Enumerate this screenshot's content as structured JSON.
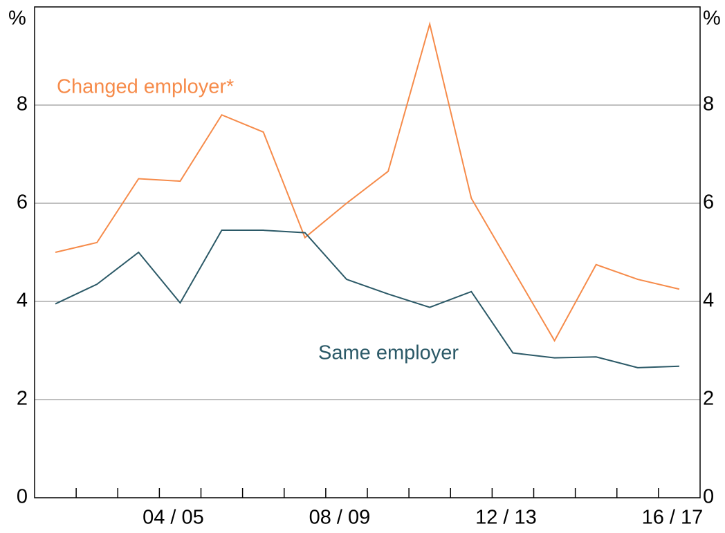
{
  "chart_data": {
    "type": "line",
    "categories": [
      null,
      null,
      null,
      "04 / 05",
      null,
      null,
      null,
      "08 / 09",
      null,
      null,
      null,
      "12 / 13",
      null,
      null,
      null,
      "16 / 17"
    ],
    "series": [
      {
        "name": "Changed employer*",
        "color": "#f68b4a",
        "values": [
          5.0,
          5.2,
          6.5,
          6.45,
          7.8,
          7.45,
          5.3,
          6.0,
          6.65,
          9.65,
          6.1,
          4.65,
          3.2,
          4.75,
          4.45,
          4.25
        ]
      },
      {
        "name": "Same employer",
        "color": "#2b5967",
        "values": [
          3.95,
          4.35,
          5.0,
          3.97,
          5.45,
          5.45,
          5.4,
          4.45,
          4.15,
          3.88,
          4.2,
          2.95,
          2.85,
          2.87,
          2.65,
          2.68
        ]
      }
    ],
    "y_unit": "%",
    "y2_unit": "%",
    "ylim": [
      0,
      10
    ],
    "yticks": [
      0,
      2,
      4,
      6,
      8
    ],
    "y2lim": [
      0,
      10
    ],
    "y2ticks": [
      0,
      2,
      4,
      6,
      8
    ],
    "grid": true
  }
}
